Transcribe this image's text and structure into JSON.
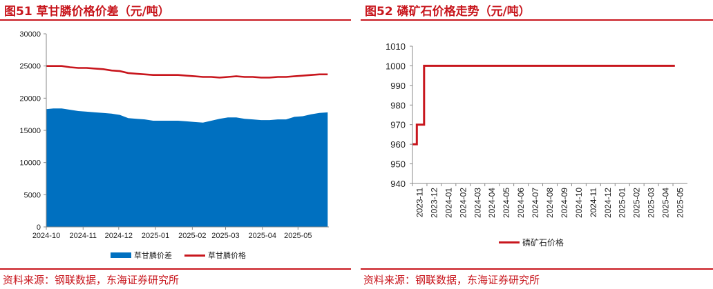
{
  "colors": {
    "accent": "#c8161d",
    "area": "#0070c0",
    "line": "#c8161d"
  },
  "left": {
    "title": "图51  草甘膦价格价差（元/吨）",
    "source": "资料来源：钢联数据，东海证券研究所"
  },
  "right": {
    "title": "图52  磷矿石价格走势（元/吨）",
    "source": "资料来源：钢联数据，东海证券研究所"
  },
  "chart_data": [
    {
      "type": "area",
      "title": "",
      "x_ticks": [
        "2024-10",
        "2024-11",
        "2024-12",
        "2025-01",
        "2025-02",
        "2025-03",
        "2025-04",
        "2025-05"
      ],
      "ylim": [
        0,
        30000
      ],
      "y_ticks": [
        "0",
        "5000",
        "10000",
        "15000",
        "20000",
        "25000",
        "30000"
      ],
      "grid": false,
      "legend_position": "bottom",
      "series": [
        {
          "name": "草甘膦价差",
          "kind": "area",
          "points": [
            [
              "2024-10-01",
              18300
            ],
            [
              "2024-10-07",
              18400
            ],
            [
              "2024-10-14",
              18400
            ],
            [
              "2024-10-21",
              18200
            ],
            [
              "2024-10-28",
              18000
            ],
            [
              "2024-11-04",
              17900
            ],
            [
              "2024-11-11",
              17800
            ],
            [
              "2024-11-18",
              17700
            ],
            [
              "2024-11-25",
              17600
            ],
            [
              "2024-12-02",
              17400
            ],
            [
              "2024-12-09",
              16900
            ],
            [
              "2024-12-16",
              16800
            ],
            [
              "2024-12-23",
              16700
            ],
            [
              "2024-12-30",
              16500
            ],
            [
              "2025-01-06",
              16500
            ],
            [
              "2025-01-13",
              16500
            ],
            [
              "2025-01-20",
              16500
            ],
            [
              "2025-01-27",
              16400
            ],
            [
              "2025-02-03",
              16300
            ],
            [
              "2025-02-10",
              16200
            ],
            [
              "2025-02-17",
              16500
            ],
            [
              "2025-02-24",
              16800
            ],
            [
              "2025-03-03",
              17000
            ],
            [
              "2025-03-10",
              17000
            ],
            [
              "2025-03-17",
              16800
            ],
            [
              "2025-03-24",
              16700
            ],
            [
              "2025-03-31",
              16600
            ],
            [
              "2025-04-07",
              16600
            ],
            [
              "2025-04-14",
              16700
            ],
            [
              "2025-04-21",
              16700
            ],
            [
              "2025-04-28",
              17100
            ],
            [
              "2025-05-05",
              17200
            ],
            [
              "2025-05-12",
              17500
            ],
            [
              "2025-05-19",
              17700
            ],
            [
              "2025-05-26",
              17800
            ]
          ]
        },
        {
          "name": "草甘膦价格",
          "kind": "line",
          "points": [
            [
              "2024-10-01",
              25000
            ],
            [
              "2024-10-07",
              25000
            ],
            [
              "2024-10-14",
              25000
            ],
            [
              "2024-10-21",
              24800
            ],
            [
              "2024-10-28",
              24700
            ],
            [
              "2024-11-04",
              24700
            ],
            [
              "2024-11-11",
              24600
            ],
            [
              "2024-11-18",
              24500
            ],
            [
              "2024-11-25",
              24300
            ],
            [
              "2024-12-02",
              24200
            ],
            [
              "2024-12-09",
              23900
            ],
            [
              "2024-12-16",
              23800
            ],
            [
              "2024-12-23",
              23700
            ],
            [
              "2024-12-30",
              23600
            ],
            [
              "2025-01-06",
              23600
            ],
            [
              "2025-01-13",
              23600
            ],
            [
              "2025-01-20",
              23600
            ],
            [
              "2025-01-27",
              23500
            ],
            [
              "2025-02-03",
              23400
            ],
            [
              "2025-02-10",
              23300
            ],
            [
              "2025-02-17",
              23300
            ],
            [
              "2025-02-24",
              23200
            ],
            [
              "2025-03-03",
              23300
            ],
            [
              "2025-03-10",
              23400
            ],
            [
              "2025-03-17",
              23300
            ],
            [
              "2025-03-24",
              23300
            ],
            [
              "2025-03-31",
              23200
            ],
            [
              "2025-04-07",
              23200
            ],
            [
              "2025-04-14",
              23300
            ],
            [
              "2025-04-21",
              23300
            ],
            [
              "2025-04-28",
              23400
            ],
            [
              "2025-05-05",
              23500
            ],
            [
              "2025-05-12",
              23600
            ],
            [
              "2025-05-19",
              23700
            ],
            [
              "2025-05-26",
              23700
            ]
          ]
        }
      ]
    },
    {
      "type": "line",
      "title": "",
      "categories": [
        "2023-11",
        "2023-12",
        "2024-01",
        "2024-02",
        "2024-03",
        "2024-04",
        "2024-05",
        "2024-06",
        "2024-07",
        "2024-08",
        "2024-09",
        "2024-10",
        "2024-11",
        "2024-12",
        "2025-01",
        "2025-02",
        "2025-03",
        "2025-04",
        "2025-05"
      ],
      "ylim": [
        940,
        1010
      ],
      "y_ticks": [
        "940",
        "950",
        "960",
        "970",
        "980",
        "990",
        "1000",
        "1010"
      ],
      "grid": false,
      "legend_position": "bottom",
      "series": [
        {
          "name": "磷矿石价格",
          "points": [
            [
              "2023-11-01",
              960
            ],
            [
              "2023-11-10",
              960
            ],
            [
              "2023-11-10",
              970
            ],
            [
              "2023-11-25",
              970
            ],
            [
              "2023-11-25",
              1000
            ],
            [
              "2024-01-01",
              1000
            ],
            [
              "2024-06-01",
              1000
            ],
            [
              "2025-01-01",
              1000
            ],
            [
              "2025-05-05",
              1000
            ]
          ]
        }
      ]
    }
  ]
}
